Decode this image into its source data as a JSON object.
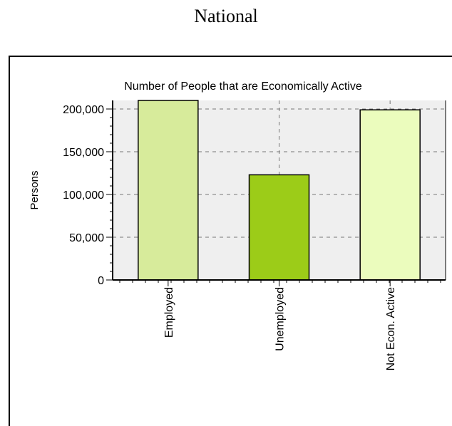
{
  "page_heading": "National",
  "chart_data": {
    "type": "bar",
    "title": "Number of People that are Economically Active",
    "ylabel": "Persons",
    "xlabel": "",
    "categories": [
      "Employed",
      "Unemployed",
      "Not Econ. Active"
    ],
    "values": [
      210000,
      123000,
      199000
    ],
    "bar_colors": [
      "#d7eb9b",
      "#9ccc18",
      "#ebfcbd"
    ],
    "yticks": [
      0,
      50000,
      100000,
      150000,
      200000
    ],
    "ytick_labels": [
      "0",
      "50,000",
      "100,000",
      "150,000",
      "200,000"
    ],
    "ylim": [
      0,
      210000
    ],
    "grid": true,
    "plot_background": "#efefef"
  }
}
